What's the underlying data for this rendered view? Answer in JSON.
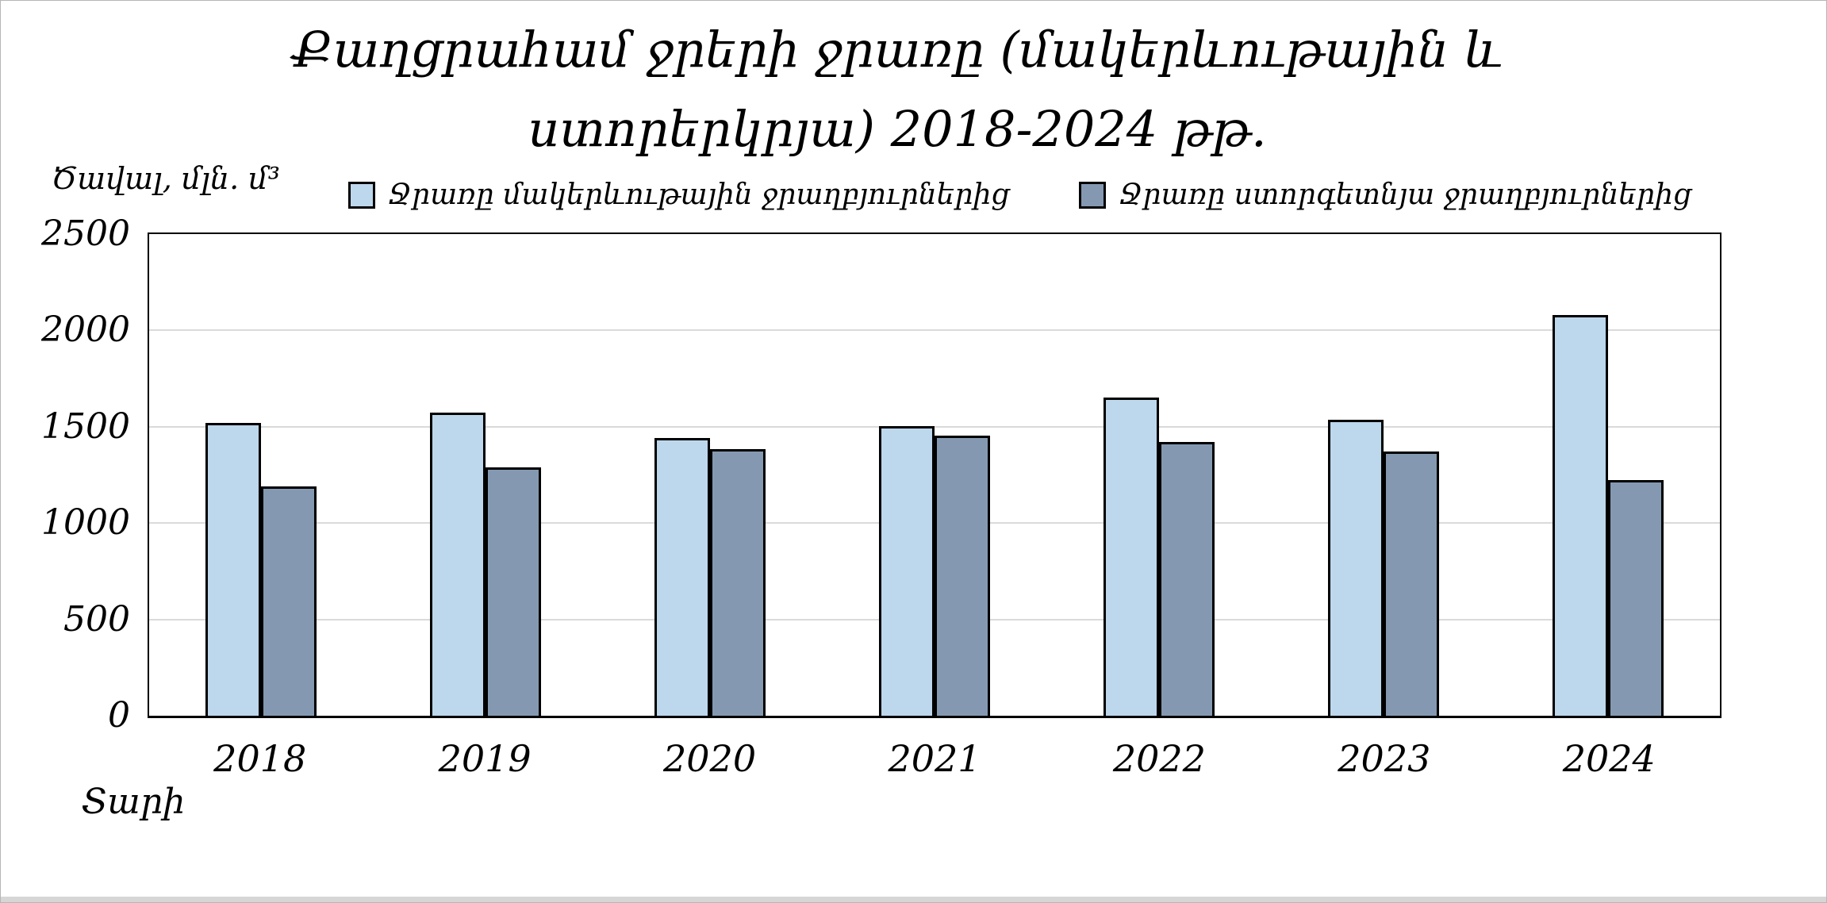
{
  "header": {
    "title_line1": "Քաղցրահամ ջրերի ջրառը (մակերևութային և",
    "title_line2": "ստորերկրյա) 2018-2024 թթ."
  },
  "axes": {
    "y_axis_label": "Ծավալ, մլն. մ³",
    "x_axis_label": "Տարի"
  },
  "colors": {
    "surface_bar": "#BDD7EC",
    "underground_bar": "#8499B1",
    "bar_border": "#000000",
    "gridline": "#DADADA",
    "plot_border": "#000000",
    "bottom_strip": "#D6D6D6"
  },
  "chart_data": {
    "type": "bar",
    "title": "Քաղցրահամ ջրերի ջրառը (մակերևութային և ստորերկրյա) 2018-2024 թթ.",
    "categories": [
      "2018",
      "2019",
      "2020",
      "2021",
      "2022",
      "2023",
      "2024"
    ],
    "series": [
      {
        "name": "Ջրառը մակերևութային ջրաղբյուրներից",
        "color": "#BDD7EC",
        "values": [
          1520,
          1575,
          1440,
          1505,
          1650,
          1535,
          2080
        ]
      },
      {
        "name": "Ջրառը ստորգետնյա ջրաղբյուրներից",
        "color": "#8499B1",
        "values": [
          1190,
          1290,
          1385,
          1455,
          1420,
          1370,
          1225
        ]
      }
    ],
    "xlabel": "Տարի",
    "ylabel": "Ծավալ, մլն. մ³",
    "ylim": [
      0,
      2500
    ],
    "yticks": [
      0,
      500,
      1000,
      1500,
      2000,
      2500
    ],
    "grid": true,
    "legend_position": "top"
  }
}
